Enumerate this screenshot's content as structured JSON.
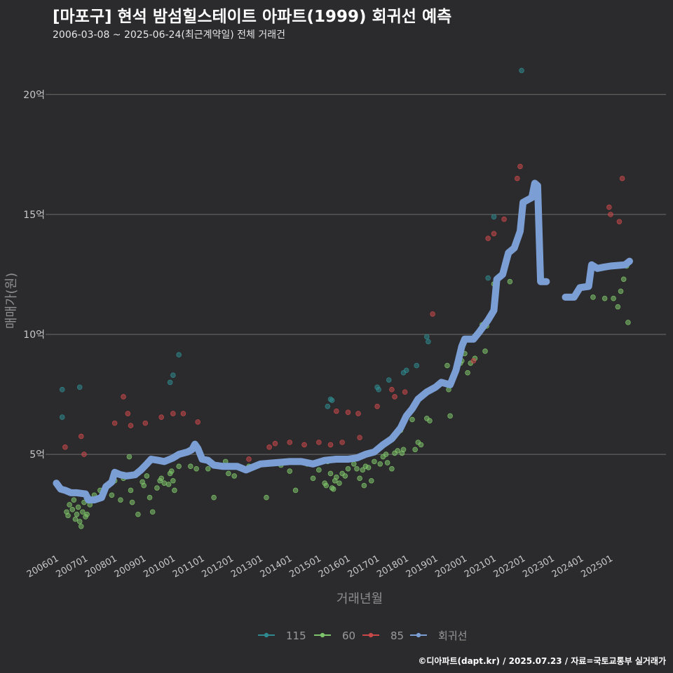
{
  "title": "[마포구] 현석 밤섬힐스테이트 아파트(1999) 회귀선 예측",
  "subtitle": "2006-03-08 ~ 2025-06-24(최근계약일) 전체 거래건",
  "caption": "©디아파트(dapt.kr) / 2025.07.23 / 자료=국토교통부 실거래가",
  "chart_data": {
    "type": "scatter",
    "xlabel": "거래년월",
    "ylabel": "매매가(원)",
    "xlim": [
      2005.75,
      2026.9
    ],
    "ylim": [
      1.0,
      21.6
    ],
    "x_ticks": [
      {
        "label": "200601",
        "value": 2006.0
      },
      {
        "label": "200701",
        "value": 2007.0
      },
      {
        "label": "200801",
        "value": 2008.0
      },
      {
        "label": "200901",
        "value": 2009.0
      },
      {
        "label": "201001",
        "value": 2010.0
      },
      {
        "label": "201101",
        "value": 2011.0
      },
      {
        "label": "201201",
        "value": 2012.0
      },
      {
        "label": "201301",
        "value": 2013.0
      },
      {
        "label": "201401",
        "value": 2014.0
      },
      {
        "label": "201501",
        "value": 2015.0
      },
      {
        "label": "201601",
        "value": 2016.0
      },
      {
        "label": "201701",
        "value": 2017.0
      },
      {
        "label": "201801",
        "value": 2018.0
      },
      {
        "label": "201901",
        "value": 2019.0
      },
      {
        "label": "202001",
        "value": 2020.0
      },
      {
        "label": "202101",
        "value": 2021.0
      },
      {
        "label": "202201",
        "value": 2022.0
      },
      {
        "label": "202301",
        "value": 2023.0
      },
      {
        "label": "202401",
        "value": 2024.0
      },
      {
        "label": "202501",
        "value": 2025.0
      }
    ],
    "y_ticks": [
      {
        "label": "5억",
        "value": 5
      },
      {
        "label": "10억",
        "value": 10
      },
      {
        "label": "15억",
        "value": 15
      },
      {
        "label": "20억",
        "value": 20
      }
    ],
    "grid": true,
    "legend_position": "bottom",
    "series": [
      {
        "name": "115",
        "color": "#2f8a8f",
        "points": [
          [
            2006.2,
            7.7
          ],
          [
            2006.2,
            6.55
          ],
          [
            2006.8,
            7.8
          ],
          [
            2009.9,
            8.0
          ],
          [
            2010.0,
            8.3
          ],
          [
            2010.2,
            9.15
          ],
          [
            2015.3,
            7.0
          ],
          [
            2015.4,
            7.3
          ],
          [
            2015.45,
            7.25
          ],
          [
            2017.0,
            7.8
          ],
          [
            2017.05,
            7.7
          ],
          [
            2017.4,
            8.1
          ],
          [
            2017.9,
            8.4
          ],
          [
            2018.0,
            8.5
          ],
          [
            2018.35,
            8.7
          ],
          [
            2018.7,
            9.9
          ],
          [
            2018.75,
            9.7
          ],
          [
            2020.8,
            12.35
          ],
          [
            2021.0,
            14.9
          ],
          [
            2021.05,
            11.7
          ],
          [
            2021.95,
            21.0
          ]
        ]
      },
      {
        "name": "60",
        "color": "#7ec46a",
        "points": [
          [
            2006.35,
            2.6
          ],
          [
            2006.4,
            2.45
          ],
          [
            2006.45,
            2.9
          ],
          [
            2006.55,
            2.7
          ],
          [
            2006.6,
            3.1
          ],
          [
            2006.65,
            2.3
          ],
          [
            2006.7,
            2.5
          ],
          [
            2006.75,
            2.8
          ],
          [
            2006.8,
            2.2
          ],
          [
            2006.85,
            2.0
          ],
          [
            2006.9,
            2.6
          ],
          [
            2006.95,
            3.0
          ],
          [
            2007.0,
            2.4
          ],
          [
            2007.05,
            2.5
          ],
          [
            2007.1,
            3.2
          ],
          [
            2007.15,
            2.9
          ],
          [
            2007.3,
            3.3
          ],
          [
            2007.5,
            3.5
          ],
          [
            2007.7,
            3.7
          ],
          [
            2007.9,
            3.3
          ],
          [
            2008.0,
            3.9
          ],
          [
            2008.2,
            3.1
          ],
          [
            2008.3,
            4.0
          ],
          [
            2008.5,
            4.9
          ],
          [
            2008.55,
            3.5
          ],
          [
            2008.6,
            3.0
          ],
          [
            2008.8,
            2.5
          ],
          [
            2008.95,
            3.85
          ],
          [
            2009.0,
            3.7
          ],
          [
            2009.1,
            4.1
          ],
          [
            2009.2,
            3.2
          ],
          [
            2009.3,
            2.6
          ],
          [
            2009.45,
            3.6
          ],
          [
            2009.55,
            3.9
          ],
          [
            2009.6,
            4.0
          ],
          [
            2009.7,
            3.8
          ],
          [
            2009.85,
            3.75
          ],
          [
            2009.9,
            4.2
          ],
          [
            2009.95,
            4.3
          ],
          [
            2010.0,
            3.9
          ],
          [
            2010.05,
            3.5
          ],
          [
            2010.2,
            4.5
          ],
          [
            2010.6,
            4.5
          ],
          [
            2010.8,
            4.4
          ],
          [
            2011.2,
            4.4
          ],
          [
            2011.4,
            3.2
          ],
          [
            2011.8,
            4.7
          ],
          [
            2011.9,
            4.2
          ],
          [
            2012.1,
            4.1
          ],
          [
            2012.6,
            4.5
          ],
          [
            2013.0,
            4.6
          ],
          [
            2013.2,
            3.2
          ],
          [
            2013.3,
            4.6
          ],
          [
            2013.7,
            4.55
          ],
          [
            2014.0,
            4.3
          ],
          [
            2014.2,
            3.5
          ],
          [
            2014.6,
            4.6
          ],
          [
            2014.8,
            4.0
          ],
          [
            2015.0,
            4.35
          ],
          [
            2015.2,
            3.8
          ],
          [
            2015.25,
            3.7
          ],
          [
            2015.3,
            4.7
          ],
          [
            2015.4,
            4.2
          ],
          [
            2015.45,
            3.6
          ],
          [
            2015.5,
            3.55
          ],
          [
            2015.55,
            3.9
          ],
          [
            2015.6,
            4.05
          ],
          [
            2015.7,
            3.8
          ],
          [
            2015.8,
            4.2
          ],
          [
            2015.9,
            4.1
          ],
          [
            2016.0,
            4.4
          ],
          [
            2016.2,
            4.6
          ],
          [
            2016.3,
            4.4
          ],
          [
            2016.4,
            4.0
          ],
          [
            2016.5,
            4.35
          ],
          [
            2016.55,
            3.7
          ],
          [
            2016.6,
            4.5
          ],
          [
            2016.7,
            4.45
          ],
          [
            2016.8,
            3.9
          ],
          [
            2016.9,
            4.7
          ],
          [
            2017.1,
            4.6
          ],
          [
            2017.2,
            4.9
          ],
          [
            2017.3,
            5.0
          ],
          [
            2017.35,
            4.65
          ],
          [
            2017.5,
            4.4
          ],
          [
            2017.6,
            5.05
          ],
          [
            2017.7,
            5.15
          ],
          [
            2017.8,
            6.0
          ],
          [
            2017.85,
            5.05
          ],
          [
            2017.9,
            5.2
          ],
          [
            2018.2,
            6.45
          ],
          [
            2018.3,
            5.2
          ],
          [
            2018.4,
            5.5
          ],
          [
            2018.5,
            5.4
          ],
          [
            2018.7,
            6.5
          ],
          [
            2018.8,
            6.4
          ],
          [
            2019.4,
            8.7
          ],
          [
            2019.45,
            7.7
          ],
          [
            2019.5,
            6.6
          ],
          [
            2019.85,
            8.8
          ],
          [
            2019.9,
            8.9
          ],
          [
            2020.0,
            9.2
          ],
          [
            2020.1,
            8.4
          ],
          [
            2020.2,
            8.8
          ],
          [
            2020.35,
            9.0
          ],
          [
            2020.4,
            9.9
          ],
          [
            2020.6,
            10.4
          ],
          [
            2020.7,
            9.3
          ],
          [
            2020.75,
            10.35
          ],
          [
            2021.0,
            12.1
          ],
          [
            2021.55,
            12.2
          ],
          [
            2024.4,
            11.55
          ],
          [
            2024.8,
            11.5
          ],
          [
            2025.1,
            11.5
          ],
          [
            2025.25,
            11.15
          ],
          [
            2025.35,
            11.8
          ],
          [
            2025.45,
            12.3
          ],
          [
            2025.55,
            12.85
          ],
          [
            2025.6,
            10.5
          ]
        ]
      },
      {
        "name": "85",
        "color": "#c9484a",
        "points": [
          [
            2006.3,
            5.3
          ],
          [
            2006.85,
            5.75
          ],
          [
            2006.95,
            5.0
          ],
          [
            2008.0,
            6.3
          ],
          [
            2008.3,
            7.4
          ],
          [
            2008.45,
            6.7
          ],
          [
            2008.55,
            6.2
          ],
          [
            2009.05,
            6.3
          ],
          [
            2009.6,
            6.55
          ],
          [
            2010.0,
            6.7
          ],
          [
            2010.35,
            6.7
          ],
          [
            2010.85,
            6.35
          ],
          [
            2012.6,
            4.8
          ],
          [
            2013.3,
            5.3
          ],
          [
            2013.5,
            5.45
          ],
          [
            2014.0,
            5.5
          ],
          [
            2014.5,
            5.4
          ],
          [
            2015.0,
            5.5
          ],
          [
            2015.4,
            5.4
          ],
          [
            2015.6,
            6.8
          ],
          [
            2015.8,
            5.5
          ],
          [
            2016.0,
            6.75
          ],
          [
            2016.35,
            6.7
          ],
          [
            2016.4,
            5.7
          ],
          [
            2017.0,
            7.0
          ],
          [
            2017.5,
            7.7
          ],
          [
            2017.6,
            7.4
          ],
          [
            2017.95,
            7.6
          ],
          [
            2018.9,
            10.85
          ],
          [
            2020.3,
            8.9
          ],
          [
            2020.8,
            14.0
          ],
          [
            2021.0,
            14.2
          ],
          [
            2021.35,
            14.8
          ],
          [
            2021.8,
            16.5
          ],
          [
            2021.9,
            17.0
          ],
          [
            2024.95,
            15.3
          ],
          [
            2025.0,
            15.0
          ],
          [
            2025.3,
            14.7
          ],
          [
            2025.4,
            16.5
          ]
        ]
      }
    ],
    "regression": {
      "name": "회귀선",
      "color": "#7b9fd4",
      "segments": [
        [
          [
            2006.0,
            3.8
          ],
          [
            2006.15,
            3.55
          ],
          [
            2006.3,
            3.5
          ],
          [
            2006.5,
            3.4
          ],
          [
            2006.7,
            3.4
          ],
          [
            2007.0,
            3.35
          ],
          [
            2007.1,
            3.1
          ],
          [
            2007.3,
            3.1
          ],
          [
            2007.55,
            3.2
          ],
          [
            2007.7,
            3.65
          ],
          [
            2007.9,
            3.85
          ],
          [
            2008.0,
            4.25
          ],
          [
            2008.2,
            4.15
          ],
          [
            2008.4,
            4.1
          ],
          [
            2008.7,
            4.15
          ],
          [
            2008.9,
            4.35
          ],
          [
            2009.1,
            4.6
          ],
          [
            2009.25,
            4.8
          ],
          [
            2009.5,
            4.75
          ],
          [
            2009.7,
            4.7
          ],
          [
            2010.0,
            4.85
          ],
          [
            2010.2,
            5.0
          ],
          [
            2010.5,
            5.1
          ],
          [
            2010.65,
            5.2
          ],
          [
            2010.75,
            5.42
          ],
          [
            2010.85,
            5.25
          ],
          [
            2011.0,
            4.8
          ],
          [
            2011.2,
            4.75
          ],
          [
            2011.4,
            4.55
          ],
          [
            2011.7,
            4.5
          ],
          [
            2012.0,
            4.5
          ],
          [
            2012.2,
            4.5
          ],
          [
            2012.5,
            4.35
          ],
          [
            2012.7,
            4.45
          ],
          [
            2013.0,
            4.6
          ],
          [
            2013.5,
            4.65
          ],
          [
            2014.0,
            4.7
          ],
          [
            2014.4,
            4.7
          ],
          [
            2014.8,
            4.6
          ],
          [
            2015.2,
            4.75
          ],
          [
            2015.6,
            4.8
          ],
          [
            2016.0,
            4.8
          ],
          [
            2016.3,
            4.85
          ],
          [
            2016.6,
            5.0
          ],
          [
            2016.9,
            5.1
          ],
          [
            2017.2,
            5.4
          ],
          [
            2017.5,
            5.65
          ],
          [
            2017.8,
            6.1
          ],
          [
            2018.0,
            6.6
          ],
          [
            2018.2,
            6.9
          ],
          [
            2018.4,
            7.3
          ],
          [
            2018.7,
            7.6
          ],
          [
            2019.0,
            7.8
          ],
          [
            2019.2,
            8.0
          ],
          [
            2019.5,
            7.9
          ],
          [
            2019.7,
            8.5
          ],
          [
            2019.9,
            9.5
          ],
          [
            2020.0,
            9.8
          ],
          [
            2020.3,
            9.8
          ],
          [
            2020.5,
            10.1
          ],
          [
            2020.8,
            10.6
          ],
          [
            2021.0,
            11.0
          ],
          [
            2021.1,
            12.3
          ],
          [
            2021.3,
            12.5
          ],
          [
            2021.5,
            13.4
          ],
          [
            2021.7,
            13.6
          ],
          [
            2021.9,
            14.3
          ],
          [
            2022.0,
            15.5
          ],
          [
            2022.15,
            15.6
          ],
          [
            2022.3,
            15.7
          ],
          [
            2022.4,
            16.3
          ],
          [
            2022.5,
            16.2
          ],
          [
            2022.6,
            12.2
          ],
          [
            2022.8,
            12.2
          ]
        ],
        [
          [
            2023.45,
            11.55
          ],
          [
            2023.75,
            11.55
          ],
          [
            2023.95,
            11.95
          ],
          [
            2024.25,
            12.0
          ],
          [
            2024.35,
            12.9
          ],
          [
            2024.55,
            12.75
          ],
          [
            2024.75,
            12.8
          ],
          [
            2025.0,
            12.85
          ],
          [
            2025.5,
            12.9
          ],
          [
            2025.65,
            13.05
          ]
        ]
      ]
    }
  }
}
